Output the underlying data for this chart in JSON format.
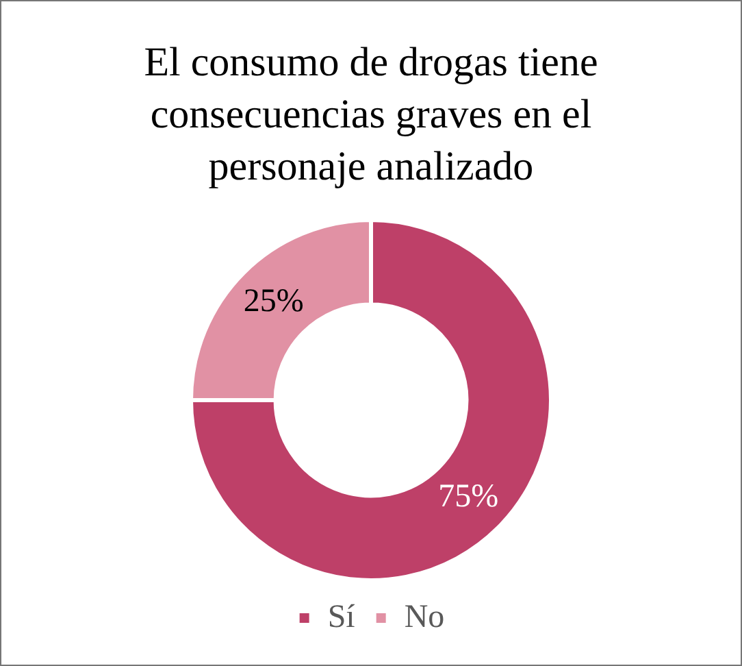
{
  "chart_data": {
    "type": "donut",
    "title": "El consumo de drogas tiene consecuencias graves en el personaje analizado",
    "categories": [
      "Sí",
      "No"
    ],
    "values": [
      75,
      25
    ],
    "colors": [
      "#be4068",
      "#e191a4"
    ],
    "value_labels": [
      "75%",
      "25%"
    ],
    "legend": "bottom"
  }
}
